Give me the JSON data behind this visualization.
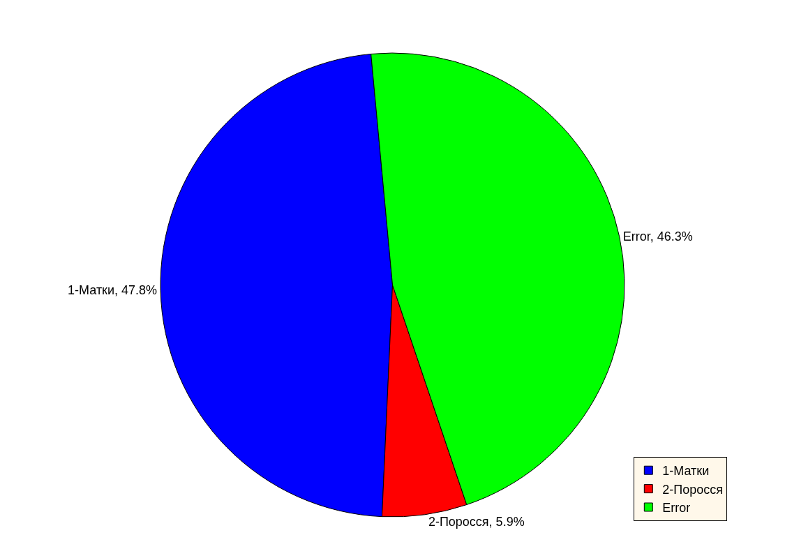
{
  "chart_data": {
    "type": "pie",
    "categories": [
      "1-Матки",
      "2-Поросся",
      "Error"
    ],
    "values": [
      47.8,
      5.9,
      46.3
    ],
    "value_labels": [
      "1-Матки, 47.8%",
      "2-Поросся, 5.9%",
      "Error, 46.3%"
    ],
    "colors": [
      "#0000ff",
      "#ff0000",
      "#00ff00"
    ],
    "legend": "bottom right"
  }
}
